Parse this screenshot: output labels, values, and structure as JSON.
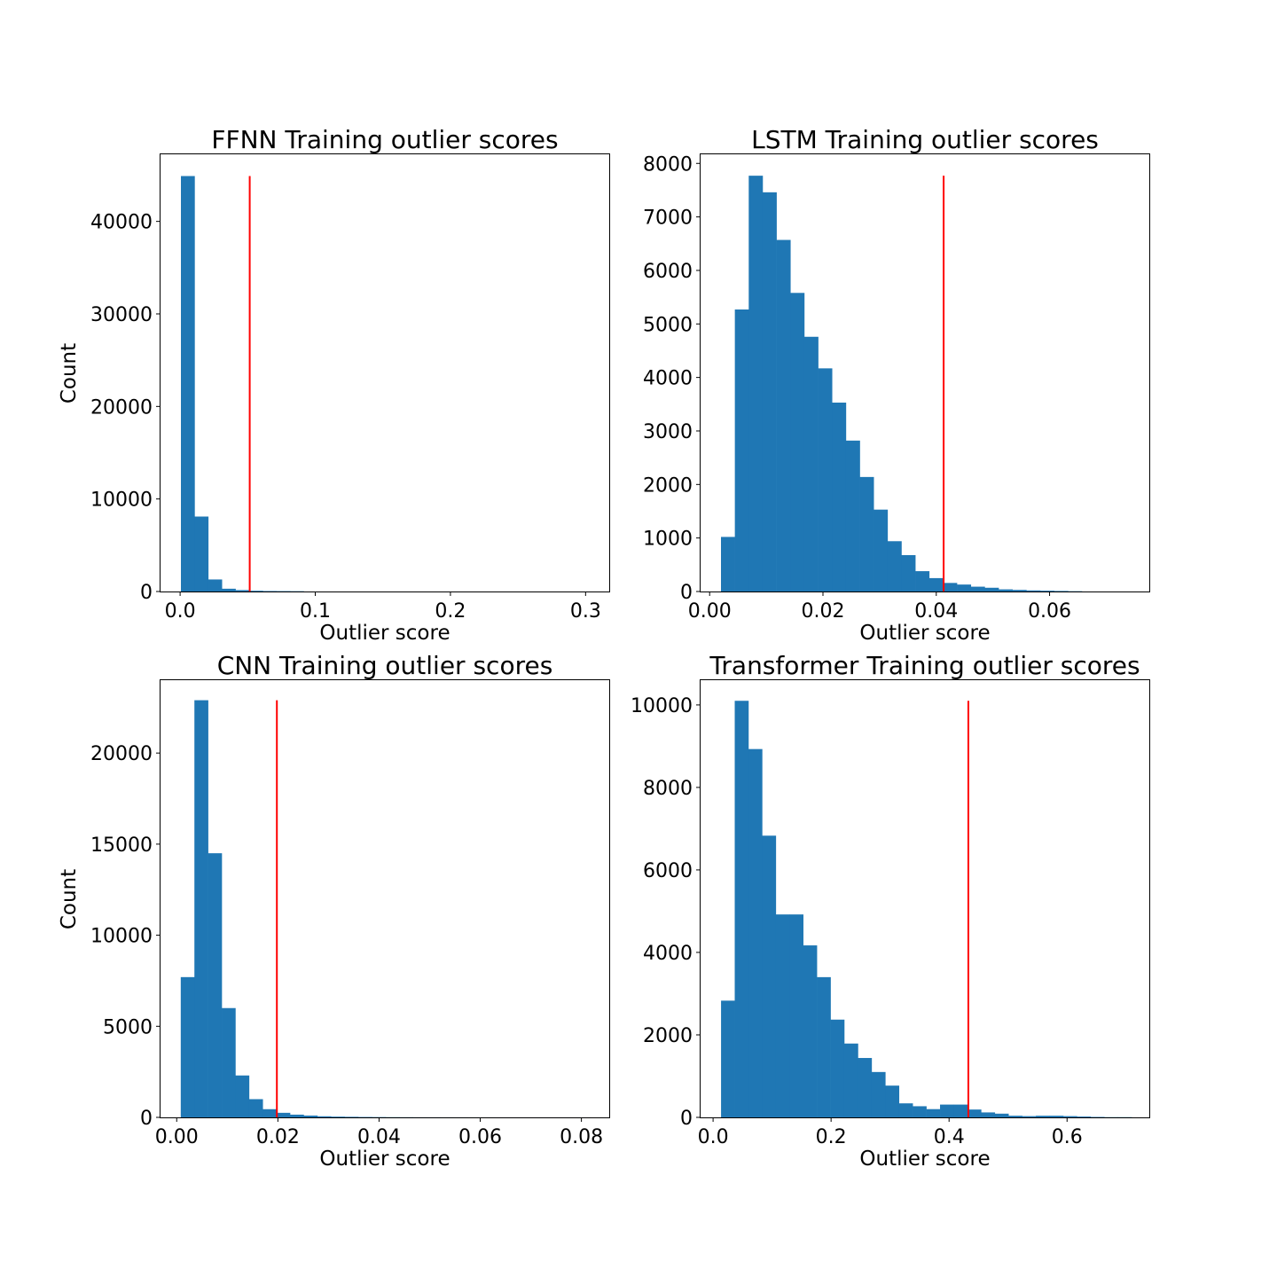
{
  "chart_data": [
    {
      "type": "bar",
      "title": "FFNN Training outlier scores",
      "xlabel": "Outlier score",
      "ylabel": "Count",
      "xlim": [
        -0.0145,
        0.3175
      ],
      "ylim": [
        0,
        47250
      ],
      "xticks": [
        {
          "value": 0.0,
          "label": "0.0"
        },
        {
          "value": 0.1,
          "label": "0.1"
        },
        {
          "value": 0.2,
          "label": "0.2"
        },
        {
          "value": 0.3,
          "label": "0.3"
        }
      ],
      "yticks": [
        {
          "value": 0,
          "label": "0"
        },
        {
          "value": 10000,
          "label": "10000"
        },
        {
          "value": 20000,
          "label": "20000"
        },
        {
          "value": 30000,
          "label": "30000"
        },
        {
          "value": 40000,
          "label": "40000"
        }
      ],
      "bin_start": 0.0006,
      "bin_width": 0.0101,
      "values": [
        44900,
        8100,
        1300,
        300,
        150,
        80,
        50,
        40,
        30,
        0,
        0,
        0,
        0,
        0,
        0,
        0,
        0,
        0,
        0,
        0,
        0,
        0,
        0,
        0,
        0,
        0,
        0,
        0,
        0,
        0
      ],
      "threshold": 0.0515,
      "threshold_top": 44900,
      "bar_color": "#1f77b4",
      "threshold_color": "#ff0000",
      "show_ylabel": true
    },
    {
      "type": "bar",
      "title": "LSTM Training outlier scores",
      "xlabel": "Outlier score",
      "ylabel": "",
      "xlim": [
        -0.0016,
        0.0776
      ],
      "ylim": [
        0,
        8170
      ],
      "xticks": [
        {
          "value": 0.0,
          "label": "0.00"
        },
        {
          "value": 0.02,
          "label": "0.02"
        },
        {
          "value": 0.04,
          "label": "0.04"
        },
        {
          "value": 0.06,
          "label": "0.06"
        }
      ],
      "yticks": [
        {
          "value": 0,
          "label": "0"
        },
        {
          "value": 1000,
          "label": "1000"
        },
        {
          "value": 2000,
          "label": "2000"
        },
        {
          "value": 3000,
          "label": "3000"
        },
        {
          "value": 4000,
          "label": "4000"
        },
        {
          "value": 5000,
          "label": "5000"
        },
        {
          "value": 6000,
          "label": "6000"
        },
        {
          "value": 7000,
          "label": "7000"
        },
        {
          "value": 8000,
          "label": "8000"
        }
      ],
      "bin_start": 0.002,
      "bin_width": 0.00245,
      "values": [
        1020,
        5270,
        7770,
        7460,
        6570,
        5580,
        4760,
        4170,
        3530,
        2820,
        2140,
        1530,
        940,
        680,
        380,
        250,
        160,
        130,
        90,
        70,
        40,
        30,
        20,
        15,
        10,
        5,
        0,
        0,
        0,
        0
      ],
      "threshold": 0.0413,
      "threshold_top": 7770,
      "bar_color": "#1f77b4",
      "threshold_color": "#ff0000",
      "show_ylabel": false
    },
    {
      "type": "bar",
      "title": "CNN Training outlier scores",
      "xlabel": "Outlier score",
      "ylabel": "Count",
      "xlim": [
        -0.0032,
        0.0855
      ],
      "ylim": [
        0,
        24000
      ],
      "xticks": [
        {
          "value": 0.0,
          "label": "0.00"
        },
        {
          "value": 0.02,
          "label": "0.02"
        },
        {
          "value": 0.04,
          "label": "0.04"
        },
        {
          "value": 0.06,
          "label": "0.06"
        },
        {
          "value": 0.08,
          "label": "0.08"
        }
      ],
      "yticks": [
        {
          "value": 0,
          "label": "0"
        },
        {
          "value": 5000,
          "label": "5000"
        },
        {
          "value": 10000,
          "label": "10000"
        },
        {
          "value": 15000,
          "label": "15000"
        },
        {
          "value": 20000,
          "label": "20000"
        }
      ],
      "bin_start": 0.0008,
      "bin_width": 0.0027,
      "values": [
        7700,
        22900,
        14500,
        6000,
        2300,
        1000,
        450,
        250,
        150,
        100,
        60,
        40,
        30,
        20,
        15,
        10,
        8,
        6,
        5,
        4,
        3,
        2,
        2,
        1,
        1,
        1,
        1,
        1,
        1,
        1
      ],
      "threshold": 0.0198,
      "threshold_top": 22900,
      "bar_color": "#1f77b4",
      "threshold_color": "#ff0000",
      "show_ylabel": true
    },
    {
      "type": "bar",
      "title": "Transformer Training outlier scores",
      "xlabel": "Outlier score",
      "ylabel": "",
      "xlim": [
        -0.0212,
        0.7394
      ],
      "ylim": [
        0,
        10600
      ],
      "xticks": [
        {
          "value": 0.0,
          "label": "0.0"
        },
        {
          "value": 0.2,
          "label": "0.2"
        },
        {
          "value": 0.4,
          "label": "0.4"
        },
        {
          "value": 0.6,
          "label": "0.6"
        }
      ],
      "yticks": [
        {
          "value": 0,
          "label": "0"
        },
        {
          "value": 2000,
          "label": "2000"
        },
        {
          "value": 4000,
          "label": "4000"
        },
        {
          "value": 6000,
          "label": "6000"
        },
        {
          "value": 8000,
          "label": "8000"
        },
        {
          "value": 10000,
          "label": "10000"
        }
      ],
      "bin_start": 0.0135,
      "bin_width": 0.0232,
      "values": [
        2830,
        10100,
        8930,
        6830,
        4920,
        4920,
        4170,
        3400,
        2370,
        1790,
        1440,
        1100,
        770,
        340,
        270,
        200,
        310,
        310,
        190,
        120,
        90,
        40,
        30,
        40,
        40,
        30,
        20,
        10,
        5,
        5
      ],
      "threshold": 0.4327,
      "threshold_top": 10100,
      "bar_color": "#1f77b4",
      "threshold_color": "#ff0000",
      "show_ylabel": false
    }
  ]
}
